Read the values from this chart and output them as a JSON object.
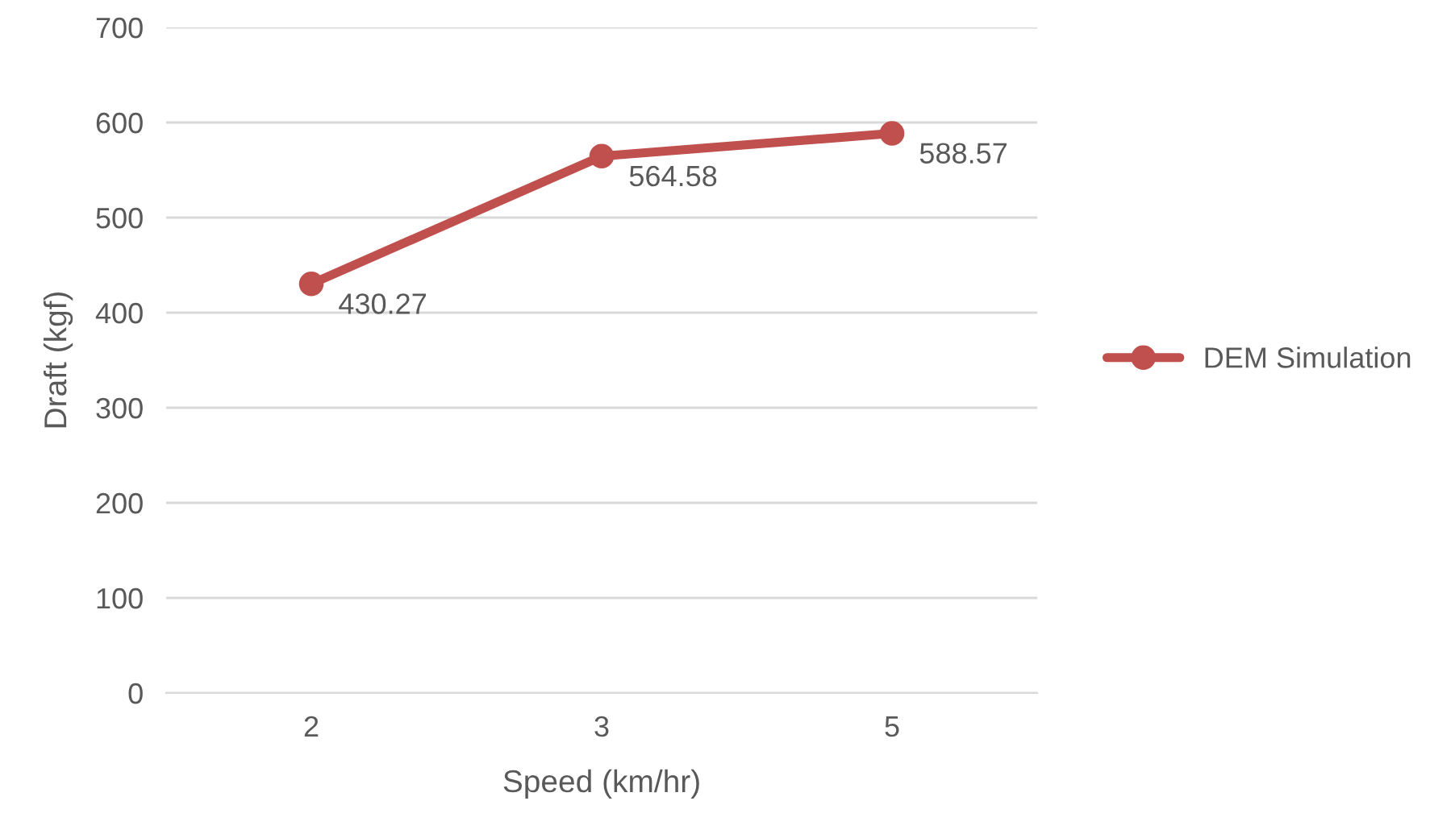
{
  "chart_data": {
    "type": "line",
    "xlabel": "Speed (km/hr)",
    "ylabel": "Draft (kgf)",
    "categories": [
      "2",
      "3",
      "5"
    ],
    "series": [
      {
        "name": "DEM Simulation",
        "color": "#c0504d",
        "values": [
          430.27,
          564.58,
          588.57
        ]
      }
    ],
    "ylim": [
      0,
      700
    ],
    "yticks": [
      0,
      100,
      200,
      300,
      400,
      500,
      600,
      700
    ],
    "grid": "y",
    "legend": "right",
    "marker": "circle",
    "line_style": "solid",
    "data_labels": true
  }
}
